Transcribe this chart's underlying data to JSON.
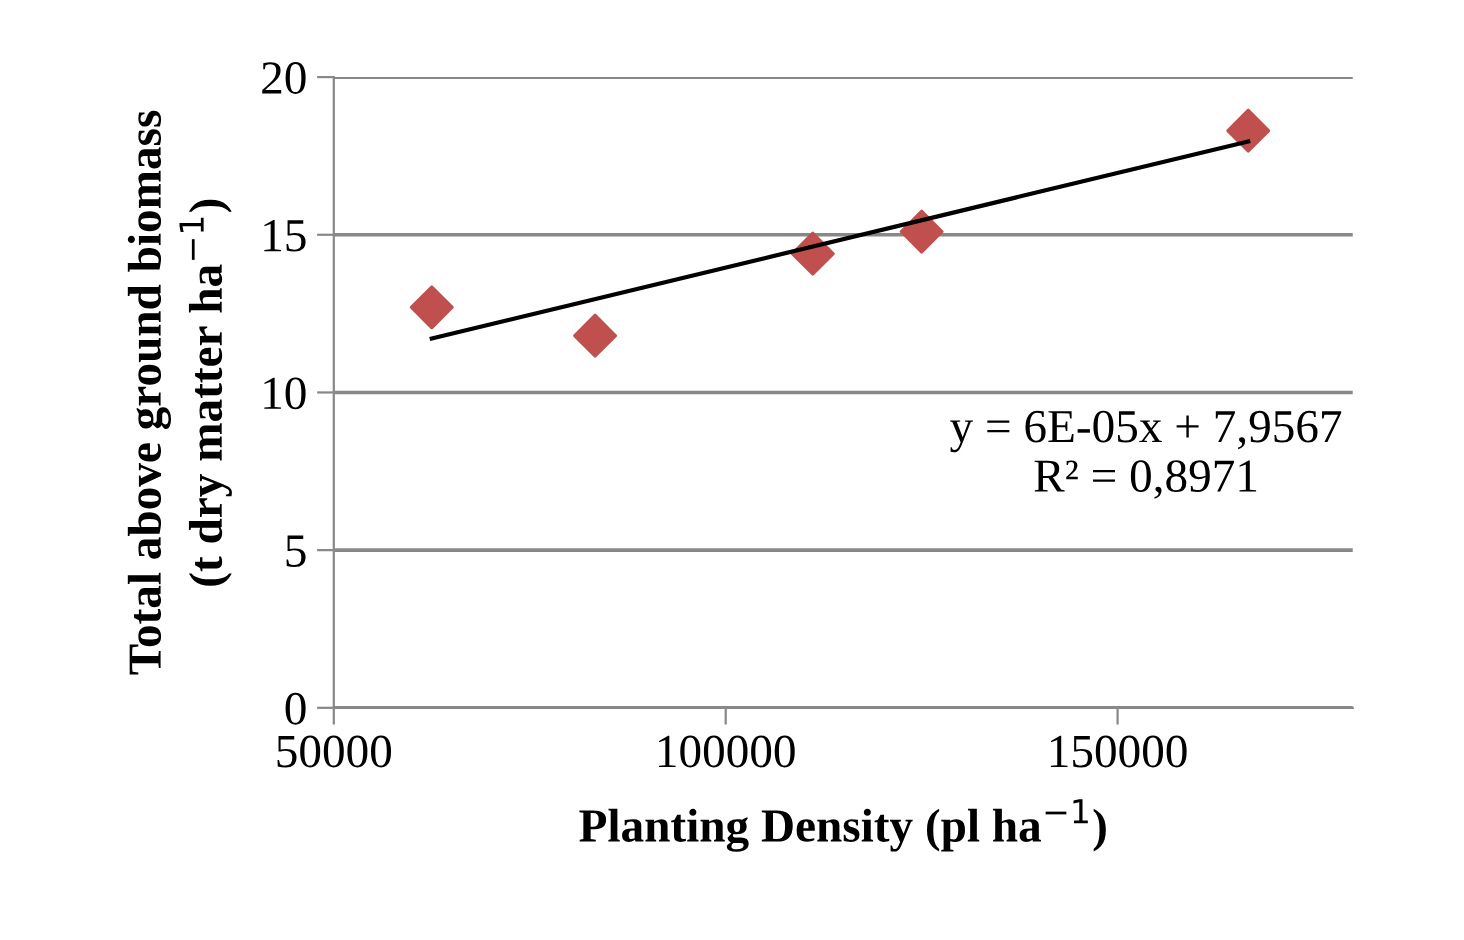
{
  "chart_data": {
    "type": "scatter",
    "xlabel": "Planting Density (pl ha$^{−1}$)",
    "ylabel": "Total above ground biomass\n(t dry matter ha$^{−1}$)",
    "x": [
      62500,
      83333,
      111111,
      125000,
      166667
    ],
    "series": [
      {
        "color": "#c0504d",
        "marker": "diamond",
        "values": [
          12.7,
          11.8,
          14.4,
          15.1,
          18.3
        ]
      },
      {
        "type": "line",
        "color": "#000000",
        "marker": "none",
        "line_style": "solid",
        "x": [
          62500,
          166667
        ],
        "values": [
          11.71,
          17.96
        ]
      }
    ],
    "annotations": [
      "y = 6E-05x + 7,9567\nR² = 0,8971"
    ],
    "xlim": [
      50000,
      180000
    ],
    "xticks": [
      50000,
      100000,
      150000
    ],
    "ylim": [
      0,
      20
    ],
    "yticks": [
      0,
      5,
      10,
      15,
      20
    ],
    "grid": "y",
    "legend": false
  }
}
